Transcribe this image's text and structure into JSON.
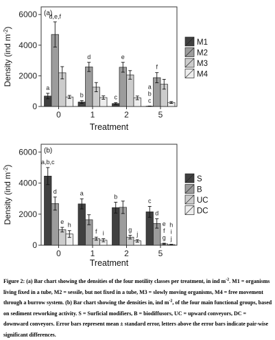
{
  "chart_data": [
    {
      "type": "bar",
      "panel_label": "(a)",
      "xlabel": "Treatment",
      "ylabel": "Density (ind m",
      "ylabel_sup": "-2",
      "ylabel_end": ")",
      "categories": [
        "0",
        "1",
        "2",
        "5"
      ],
      "ylim": [
        0,
        6500
      ],
      "yticks": [
        0,
        2000,
        4000,
        6000
      ],
      "grid": false,
      "legend_position": "right",
      "series": [
        {
          "name": "M1",
          "color": "#404040",
          "values": [
            680,
            290,
            190,
            20
          ],
          "errors": [
            180,
            90,
            60,
            10
          ],
          "letters": [
            "a",
            "b",
            "c",
            "a\nb\nc"
          ]
        },
        {
          "name": "M2",
          "color": "#9c9c9c",
          "values": [
            4700,
            2580,
            2560,
            1880
          ],
          "errors": [
            820,
            300,
            320,
            330
          ],
          "letters": [
            "d,e,f",
            "d",
            "e",
            "f"
          ]
        },
        {
          "name": "M3",
          "color": "#cccccc",
          "values": [
            2200,
            1260,
            2060,
            1450
          ],
          "errors": [
            400,
            300,
            280,
            320
          ],
          "letters": [
            "",
            "",
            "",
            ""
          ]
        },
        {
          "name": "M4",
          "color": "#ededed",
          "values": [
            620,
            580,
            560,
            260
          ],
          "errors": [
            100,
            110,
            120,
            60
          ],
          "letters": [
            "",
            "",
            "",
            ""
          ]
        }
      ]
    },
    {
      "type": "bar",
      "panel_label": "(b)",
      "xlabel": "Treatment",
      "ylabel": "Density (ind m",
      "ylabel_sup": "-2",
      "ylabel_end": ")",
      "categories": [
        "0",
        "1",
        "2",
        "5"
      ],
      "ylim": [
        0,
        6500
      ],
      "yticks": [
        0,
        2000,
        4000,
        6000
      ],
      "grid": false,
      "legend_position": "right",
      "series": [
        {
          "name": "S",
          "color": "#404040",
          "values": [
            4450,
            2660,
            2420,
            2150
          ],
          "errors": [
            550,
            320,
            350,
            350
          ],
          "letters": [
            "a,b,c",
            "a",
            "b",
            "c"
          ]
        },
        {
          "name": "B",
          "color": "#9c9c9c",
          "values": [
            2680,
            1640,
            2440,
            1400
          ],
          "errors": [
            420,
            320,
            400,
            300
          ],
          "letters": [
            "d",
            "",
            "",
            "d"
          ]
        },
        {
          "name": "UC",
          "color": "#cccccc",
          "values": [
            1000,
            420,
            520,
            90
          ],
          "errors": [
            150,
            100,
            120,
            40
          ],
          "letters": [
            "e",
            "f",
            "g",
            "e\nf\ng"
          ]
        },
        {
          "name": "DC",
          "color": "#ededed",
          "values": [
            720,
            320,
            280,
            40
          ],
          "errors": [
            220,
            100,
            80,
            20
          ],
          "letters": [
            "h",
            "i",
            "j",
            "h\ni\nj"
          ]
        }
      ]
    }
  ],
  "caption": {
    "label": "Figure 2:",
    "text_1": " (a) Bar chart showing the densities of the four motility classes per treatment, in ind m",
    "sup_1": "-2",
    "text_2": ". M1 = organisms living fixed in a tube, M2 = sessile, but not fixed in a tube, M3 = slowly moving organisms, M4 = free movement through a burrow system. (b) Bar chart showing the densities in, ind m",
    "sup_2": "-2",
    "text_3": ", of the four main functional groups, based on sediment reworking activity. S = Surficial modifiers, B = biodiffusors, UC = upward conveyors, DC = downward conveyors. Error bars represent mean ± standard error, letters above the error bars indicate pair-wise significant differences."
  }
}
